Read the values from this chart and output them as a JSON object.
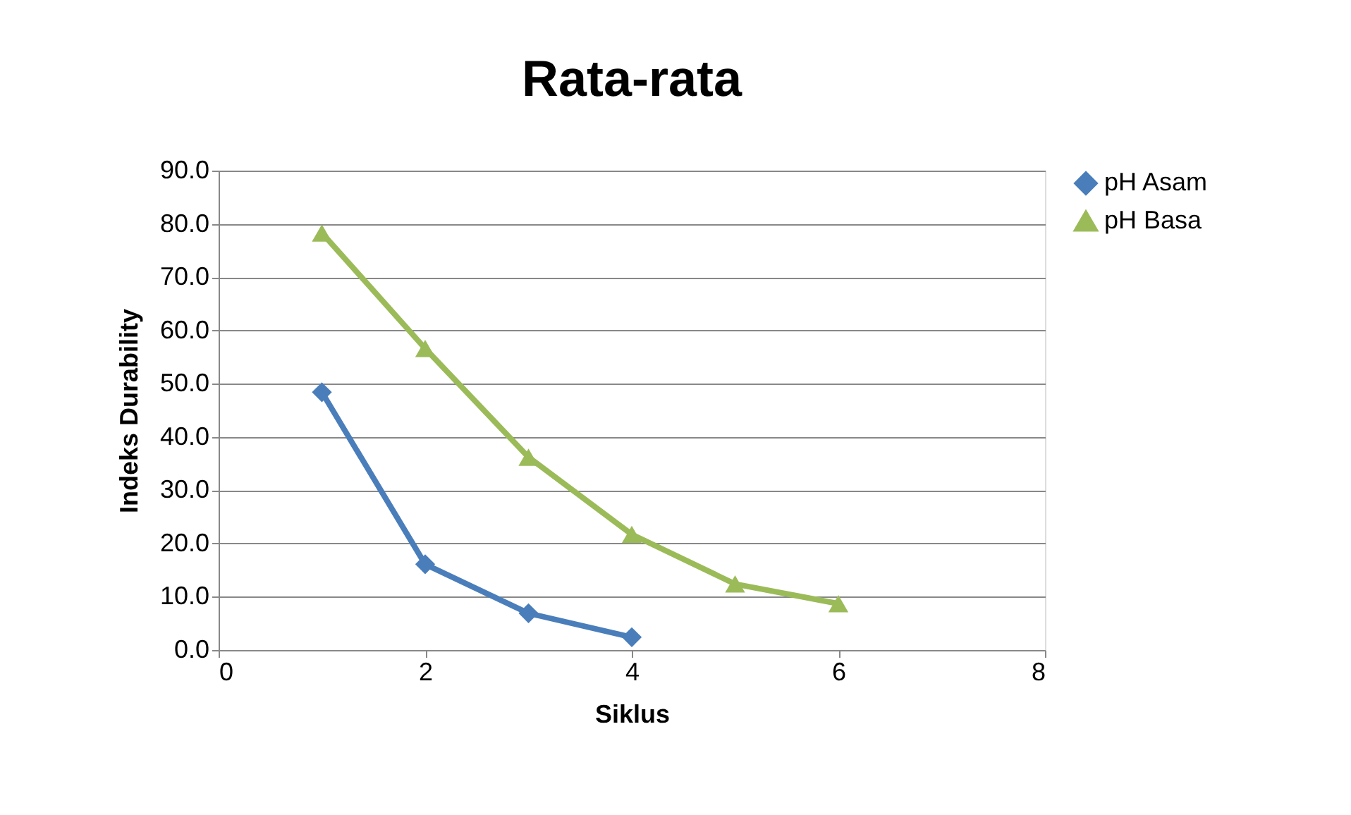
{
  "chart_data": {
    "type": "line",
    "title": "Rata-rata",
    "xlabel": "Siklus",
    "ylabel": "Indeks Durability",
    "xlim": [
      0,
      8
    ],
    "xticks": [
      0,
      2,
      4,
      6,
      8
    ],
    "ylim": [
      0,
      90
    ],
    "yticks": [
      {
        "value": 0,
        "label": "0.0"
      },
      {
        "value": 10,
        "label": "10.0"
      },
      {
        "value": 20,
        "label": "20.0"
      },
      {
        "value": 30,
        "label": "30.0"
      },
      {
        "value": 40,
        "label": "40.0"
      },
      {
        "value": 50,
        "label": "50.0"
      },
      {
        "value": 60,
        "label": "60.0"
      },
      {
        "value": 70,
        "label": "70.0"
      },
      {
        "value": 80,
        "label": "80.0"
      },
      {
        "value": 90,
        "label": "90.0"
      }
    ],
    "grid": "y",
    "legend": "right",
    "line_style": "solid",
    "series": [
      {
        "name": "pH Asam",
        "color": "#4a7ebb",
        "marker": "diamond",
        "x": [
          1,
          2,
          3,
          4
        ],
        "values": [
          48.4,
          16.1,
          6.9,
          2.4
        ]
      },
      {
        "name": "pH Basa",
        "color": "#9bbb59",
        "marker": "triangle",
        "x": [
          1,
          2,
          3,
          4,
          5,
          6
        ],
        "values": [
          78.3,
          56.6,
          36.2,
          21.7,
          12.4,
          8.7
        ]
      }
    ]
  }
}
